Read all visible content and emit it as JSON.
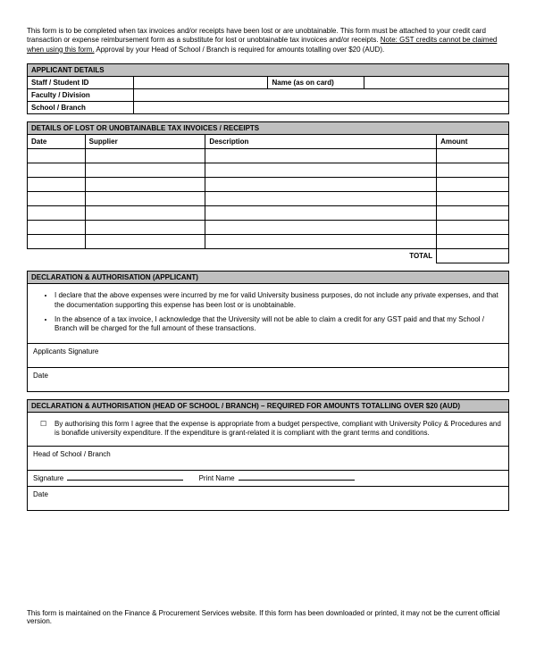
{
  "intro": {
    "text_pre": "This form is to be completed when tax invoices and/or receipts have been lost or are unobtainable. This form must be attached to your credit card transaction or expense reimbursement form as a substitute for lost or unobtainable tax invoices and/or receipts. ",
    "note_label": "Note: GST credits cannot be claimed when using this form.",
    "text_post": " Approval by your Head of School / Branch is required for amounts totalling over $20 (AUD)."
  },
  "applicant": {
    "header": "APPLICANT DETAILS",
    "staff_id_label": "Staff / Student ID",
    "name_label": "Name (as on card)",
    "faculty_label": "Faculty / Division",
    "school_label": "School / Branch"
  },
  "details": {
    "header": "DETAILS OF LOST OR UNOBTAINABLE TAX INVOICES / RECEIPTS",
    "col_date": "Date",
    "col_supplier": "Supplier",
    "col_desc": "Description",
    "col_amount": "Amount",
    "total_label": "TOTAL",
    "num_rows": 7
  },
  "declaration1": {
    "header": "DECLARATION & AUTHORISATION (APPLICANT)",
    "bullet1": "I declare that the above expenses were incurred by me for valid University business purposes, do not include any private expenses, and that the documentation supporting this expense has been lost or is unobtainable.",
    "bullet2": "In the absence of a tax invoice, I acknowledge that the University will not be able to claim a credit for any GST paid and that my School / Branch will be charged for the full amount of these transactions.",
    "sig_label": "Applicants Signature",
    "date_label": "Date"
  },
  "declaration2": {
    "header": "DECLARATION & AUTHORISATION (HEAD OF SCHOOL / BRANCH) – REQUIRED FOR AMOUNTS TOTALLING OVER $20 (AUD)",
    "checkbox_text": "By authorising this form I agree that the expense is appropriate from a budget perspective, compliant with University Policy & Procedures and is bonafide university expenditure. If the expenditure is grant-related it is compliant with the grant terms and conditions.",
    "head_label": "Head of School / Branch",
    "sig_label": "Signature",
    "print_label": "Print Name",
    "date_label": "Date"
  },
  "footer": {
    "text": "This form is maintained on the Finance & Procurement Services website. If this form has been downloaded or printed, it may not be the current official version."
  },
  "style": {
    "header_bg": "#c0c0c0",
    "border_color": "#000000",
    "font_size_body": 8
  }
}
